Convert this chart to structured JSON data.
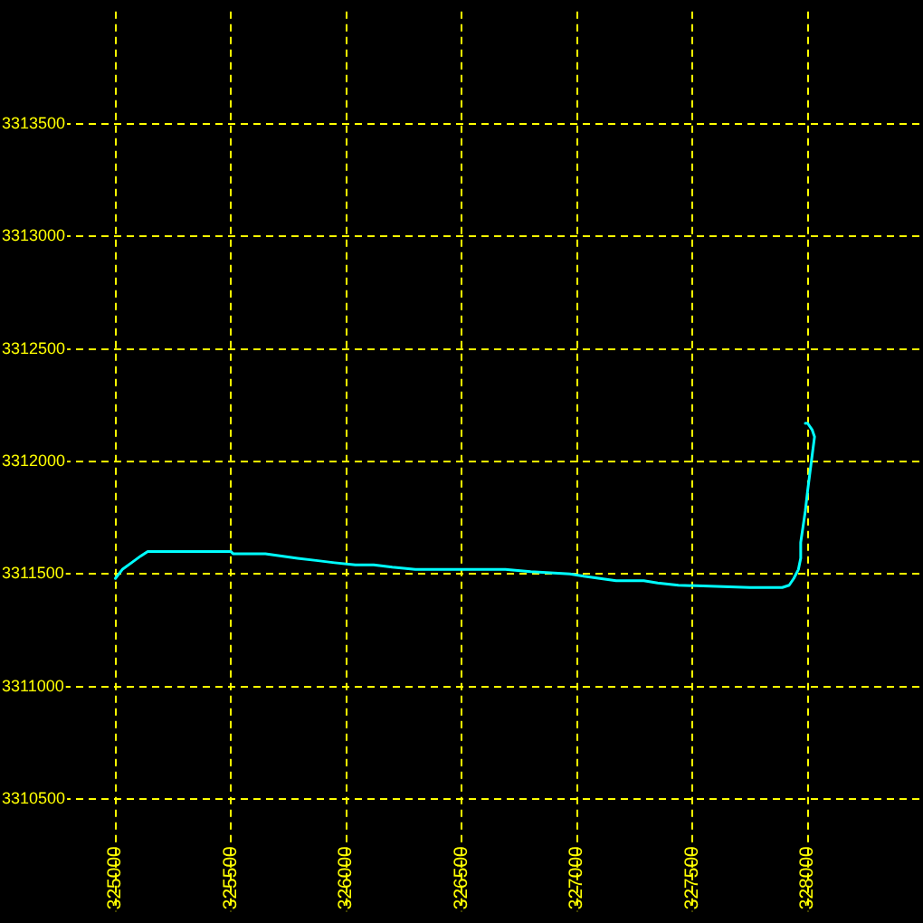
{
  "chart_data": {
    "type": "line",
    "x": [
      325000,
      325030,
      325070,
      325110,
      325140,
      325180,
      325500,
      325510,
      325650,
      325720,
      325790,
      325870,
      325950,
      326040,
      326120,
      326200,
      326300,
      326550,
      326690,
      326800,
      326970,
      327030,
      327100,
      327170,
      327290,
      327350,
      327440,
      327750,
      327800,
      327890,
      327920,
      327940,
      327960,
      327970,
      327970,
      327980,
      327990,
      328000,
      328010,
      328020,
      328030,
      328020,
      328000,
      327990
    ],
    "series": [
      {
        "color": "#00ffff",
        "values": [
          3311480,
          3311520,
          3311550,
          3311580,
          3311600,
          3311600,
          3311600,
          3311590,
          3311590,
          3311580,
          3311570,
          3311560,
          3311550,
          3311540,
          3311540,
          3311530,
          3311520,
          3311520,
          3311520,
          3311510,
          3311500,
          3311490,
          3311480,
          3311470,
          3311470,
          3311460,
          3311450,
          3311440,
          3311440,
          3311440,
          3311450,
          3311480,
          3311520,
          3311570,
          3311640,
          3311710,
          3311780,
          3311870,
          3311950,
          3312030,
          3312110,
          3312140,
          3312170,
          3312170
        ]
      }
    ],
    "xlim": [
      324500,
      328500
    ],
    "ylim": [
      3310000,
      3314000
    ],
    "xticks": [
      325000,
      325500,
      326000,
      326500,
      327000,
      327500,
      328000
    ],
    "yticks": [
      3310500,
      3311000,
      3311500,
      3312000,
      3312500,
      3313000,
      3313500
    ],
    "grid": true,
    "marker": "none",
    "line_style": "solid"
  }
}
